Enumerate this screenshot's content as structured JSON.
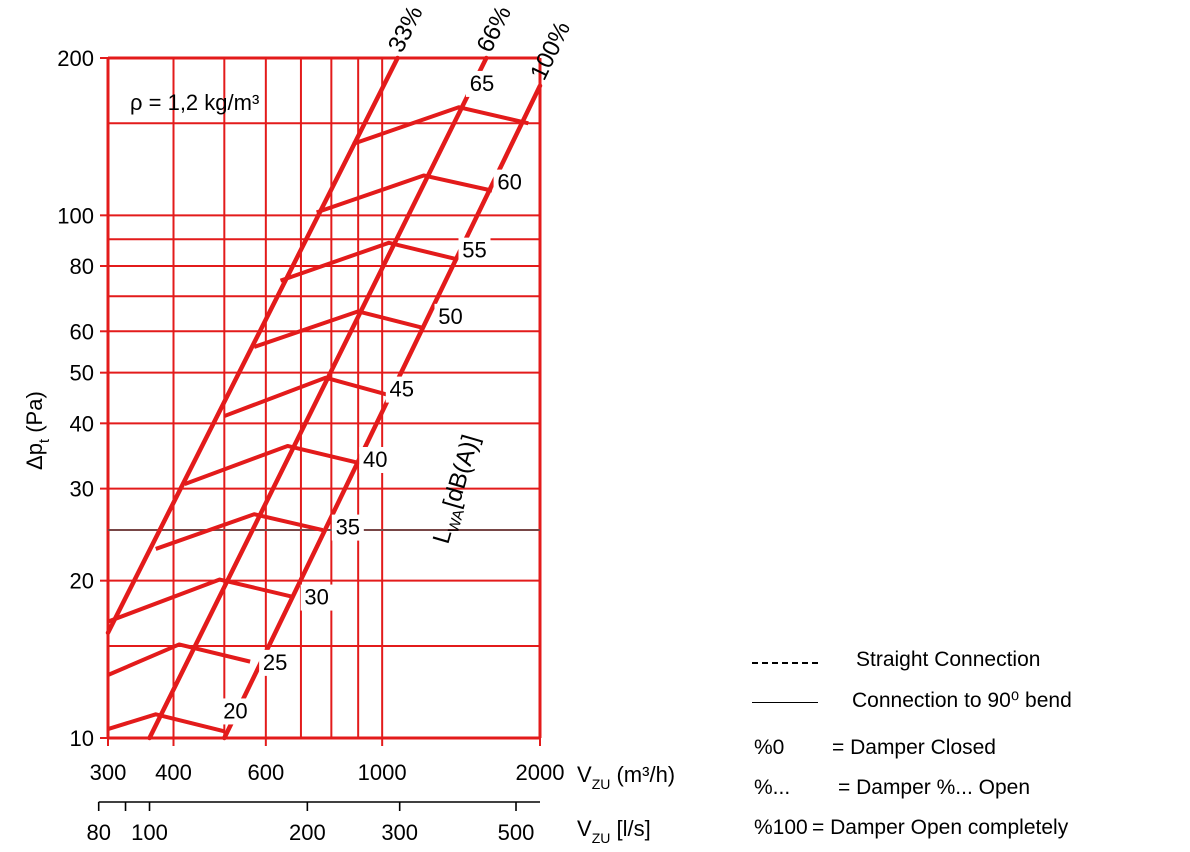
{
  "chart_data": {
    "type": "line",
    "x_scale": "log",
    "y_scale": "log",
    "xlim": [
      300,
      2000
    ],
    "ylim": [
      10,
      200
    ],
    "grid": true,
    "x_ticks": [
      {
        "value": 300,
        "label": "300"
      },
      {
        "value": 400,
        "label": "400"
      },
      {
        "value": 600,
        "label": "600"
      },
      {
        "value": 1000,
        "label": "1000"
      },
      {
        "value": 2000,
        "label": "2000"
      }
    ],
    "x2_ticks": [
      {
        "value": 80,
        "label": "80"
      },
      {
        "value": 100,
        "label": "100"
      },
      {
        "value": 200,
        "label": "200"
      },
      {
        "value": 300,
        "label": "300"
      },
      {
        "value": 500,
        "label": "500"
      }
    ],
    "x2_minor": [
      90
    ],
    "y_ticks": [
      {
        "value": 10,
        "label": "10"
      },
      {
        "value": 20,
        "label": "20"
      },
      {
        "value": 30,
        "label": "30"
      },
      {
        "value": 40,
        "label": "40"
      },
      {
        "value": 50,
        "label": "50"
      },
      {
        "value": 60,
        "label": "60"
      },
      {
        "value": 80,
        "label": "80"
      },
      {
        "value": 100,
        "label": "100"
      },
      {
        "value": 200,
        "label": "200"
      }
    ],
    "x_gridlines": [
      300,
      400,
      500,
      600,
      700,
      800,
      900,
      1000,
      2000
    ],
    "y_gridlines": [
      10,
      15,
      20,
      25,
      30,
      40,
      50,
      60,
      70,
      80,
      90,
      100,
      150,
      200
    ],
    "reference_line_y": 25,
    "xlabel": "V",
    "xlabel_sub": "ZU",
    "xlabel_unit": "(m³/h)",
    "x2label": "V",
    "x2label_sub": "ZU",
    "x2label_unit": "[l/s]",
    "ylabel": "Δp",
    "ylabel_sub": "t",
    "ylabel_unit": "(Pa)",
    "density_note": "ρ = 1,2 kg/m³",
    "series": [
      {
        "name": "33%",
        "x": [
          300,
          1070
        ],
        "y": [
          15.9,
          200
        ]
      },
      {
        "name": "66%",
        "x": [
          360,
          1580
        ],
        "y": [
          10,
          200
        ]
      },
      {
        "name": "100%",
        "x": [
          500,
          2000
        ],
        "y": [
          10,
          177
        ]
      }
    ],
    "sound_label_title": "L",
    "sound_label_sub": "WA",
    "sound_label_unit": "[dB(A)]",
    "sound_levels": [
      {
        "label": "20",
        "points": [
          [
            300,
            10.4
          ],
          [
            370,
            11.1
          ],
          [
            500,
            10.3
          ]
        ],
        "label_at": [
          525,
          10.9
        ]
      },
      {
        "label": "25",
        "points": [
          [
            300,
            13.2
          ],
          [
            410,
            15.1
          ],
          [
            560,
            14.0
          ]
        ],
        "label_at": [
          625,
          13.5
        ]
      },
      {
        "label": "30",
        "points": [
          [
            300,
            16.7
          ],
          [
            490,
            20.1
          ],
          [
            680,
            18.6
          ]
        ],
        "label_at": [
          750,
          18.0
        ]
      },
      {
        "label": "35",
        "points": [
          [
            370,
            23.0
          ],
          [
            570,
            26.8
          ],
          [
            770,
            25.0
          ]
        ],
        "label_at": [
          860,
          24.5
        ]
      },
      {
        "label": "40",
        "points": [
          [
            420,
            30.6
          ],
          [
            660,
            36.2
          ],
          [
            890,
            33.7
          ]
        ],
        "label_at": [
          970,
          33.0
        ]
      },
      {
        "label": "45",
        "points": [
          [
            500,
            41.3
          ],
          [
            780,
            48.9
          ],
          [
            1030,
            45.3
          ]
        ],
        "label_at": [
          1090,
          45.0
        ]
      },
      {
        "label": "50",
        "points": [
          [
            570,
            56.0
          ],
          [
            900,
            65.5
          ],
          [
            1190,
            61.0
          ]
        ],
        "label_at": [
          1350,
          62.0
        ]
      },
      {
        "label": "55",
        "points": [
          [
            640,
            75.0
          ],
          [
            1030,
            88.6
          ],
          [
            1390,
            82.4
          ]
        ],
        "label_at": [
          1500,
          83.0
        ]
      },
      {
        "label": "60",
        "points": [
          [
            750,
            101.3
          ],
          [
            1200,
            119.2
          ],
          [
            1620,
            111.5
          ]
        ],
        "label_at": [
          1750,
          112.0
        ]
      },
      {
        "label": "65",
        "points": [
          [
            880,
            137.0
          ],
          [
            1400,
            161.0
          ],
          [
            1900,
            150.0
          ]
        ],
        "label_at": [
          1550,
          173.0
        ]
      }
    ]
  },
  "legend": {
    "rows": [
      {
        "symbol": "dashed",
        "text": "Straight Connection"
      },
      {
        "symbol": "solid",
        "text": "Connection to 90⁰ bend"
      },
      {
        "symbol": "%0",
        "text": "= Damper Closed"
      },
      {
        "symbol": "%...",
        "text": "= Damper %... Open"
      },
      {
        "symbol": "%100",
        "text": "= Damper Open completely"
      }
    ]
  },
  "colors": {
    "line": "#e31b1b",
    "grid": "#e31b1b",
    "text": "#000000",
    "reference": "#555555"
  }
}
